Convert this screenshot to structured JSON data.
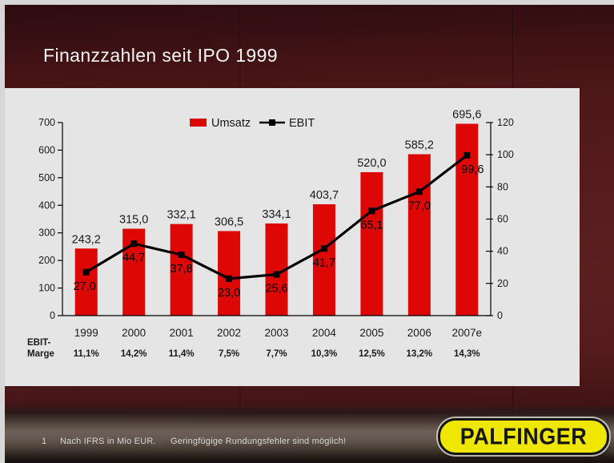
{
  "slide": {
    "title": "Finanzzahlen seit IPO 1999"
  },
  "footer": {
    "page_number": "1",
    "note_ifrs": "Nach IFRS in Mio EUR.",
    "note_rounding": "Geringfügige Rundungsfehler sind möglich!"
  },
  "logo": {
    "text": "PALFINGER",
    "background": "#f0e603",
    "text_color": "#161616"
  },
  "colors": {
    "slide_background": "#541a1c",
    "panel": "#e5e5e5",
    "bar_red": "#dd0705",
    "ebit_line": "#000000",
    "label_text": "#1a1a1a",
    "title_text": "#f5f5f5",
    "footer_text": "#d6d4d2"
  },
  "chart_data": {
    "type": "combo-bar-line",
    "title": "Finanzzahlen seit IPO 1999",
    "categories": [
      "1999",
      "2000",
      "2001",
      "2002",
      "2003",
      "2004",
      "2005",
      "2006",
      "2007e"
    ],
    "series": [
      {
        "name": "Umsatz",
        "type": "bar",
        "axis": "left",
        "color": "#dd0705",
        "values": [
          243.2,
          315.0,
          332.1,
          306.5,
          334.1,
          403.7,
          520.0,
          585.2,
          695.6
        ],
        "labels": [
          "243,2",
          "315,0",
          "332,1",
          "306,5",
          "334,1",
          "403,7",
          "520,0",
          "585,2",
          "695,6"
        ]
      },
      {
        "name": "EBIT",
        "type": "line",
        "axis": "right",
        "color": "#000000",
        "values": [
          27.0,
          44.7,
          37.8,
          23.0,
          25.6,
          41.7,
          65.1,
          77.0,
          99.6
        ],
        "labels": [
          "27,0",
          "44,7",
          "37,8",
          "23,0",
          "25,6",
          "41,7",
          "65,1",
          "77,0",
          "99,6"
        ]
      }
    ],
    "left_axis": {
      "min": 0,
      "max": 700,
      "step": 100,
      "tick_labels": [
        "0",
        "100",
        "200",
        "300",
        "400",
        "500",
        "600",
        "700"
      ]
    },
    "right_axis": {
      "min": 0,
      "max": 120,
      "step": 20,
      "tick_labels": [
        "0",
        "20",
        "40",
        "60",
        "80",
        "100",
        "120"
      ]
    },
    "margin_row": {
      "label_line1": "EBIT-",
      "label_line2": "Marge",
      "values": [
        "11,1%",
        "14,2%",
        "11,4%",
        "7,5%",
        "7,7%",
        "10,3%",
        "12,5%",
        "13,2%",
        "14,3%"
      ]
    },
    "legend": {
      "position": "top-center",
      "entries": [
        "Umsatz",
        "EBIT"
      ]
    },
    "grid": "off"
  }
}
